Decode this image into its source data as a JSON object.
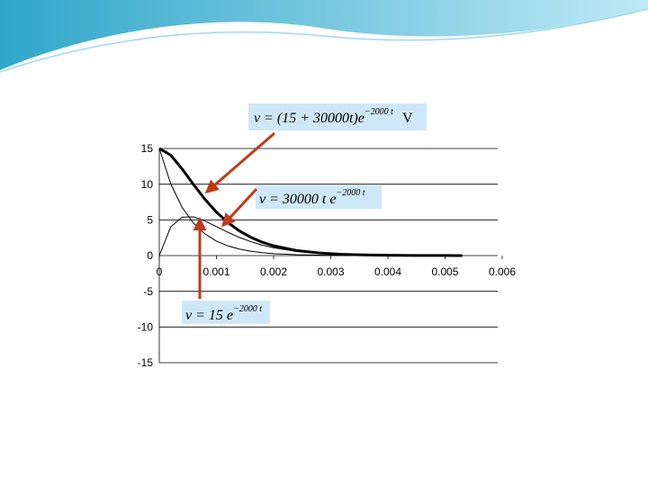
{
  "chart_data": {
    "type": "line",
    "x": [
      0,
      0.0002,
      0.0004,
      0.0006,
      0.0008,
      0.001,
      0.0012,
      0.0014,
      0.0016,
      0.0018,
      0.002,
      0.0024,
      0.0028,
      0.0032,
      0.0036,
      0.004,
      0.0045,
      0.005,
      0.0053
    ],
    "series": [
      {
        "color": "#000000",
        "width": 3,
        "values": [
          15,
          14.07,
          12.13,
          9.94,
          7.88,
          6.09,
          4.63,
          3.46,
          2.57,
          1.88,
          1.37,
          0.71,
          0.37,
          0.18,
          0.09,
          0.05,
          0.02,
          0.01,
          0
        ]
      },
      {
        "color": "#000000",
        "width": 1,
        "values": [
          0,
          4.02,
          5.39,
          5.42,
          4.85,
          4.06,
          3.27,
          2.55,
          1.96,
          1.47,
          1.1,
          0.59,
          0.31,
          0.16,
          0.08,
          0.04,
          0.02,
          0.01,
          0
        ]
      },
      {
        "color": "#000000",
        "width": 1,
        "values": [
          15,
          10.05,
          6.74,
          4.52,
          3.03,
          2.03,
          1.36,
          0.91,
          0.61,
          0.41,
          0.27,
          0.12,
          0.06,
          0.02,
          0.01,
          0.01,
          0,
          0,
          0
        ]
      }
    ],
    "xlim": [
      0,
      0.006
    ],
    "xticks": [
      0,
      0.001,
      0.002,
      0.003,
      0.004,
      0.005,
      0.006
    ],
    "ylim": [
      -15,
      15
    ],
    "yticks": [
      -15,
      -10,
      -5,
      0,
      5,
      10,
      15
    ],
    "grid": true,
    "annotations": [
      {
        "text": "v = (15 + 30000t)e",
        "exponent": "−2000 t",
        "unit": "V"
      },
      {
        "text": "v = 30000 t e",
        "exponent": "−2000 t"
      },
      {
        "text": "v = 15 e",
        "exponent": "−2000 t"
      }
    ]
  }
}
